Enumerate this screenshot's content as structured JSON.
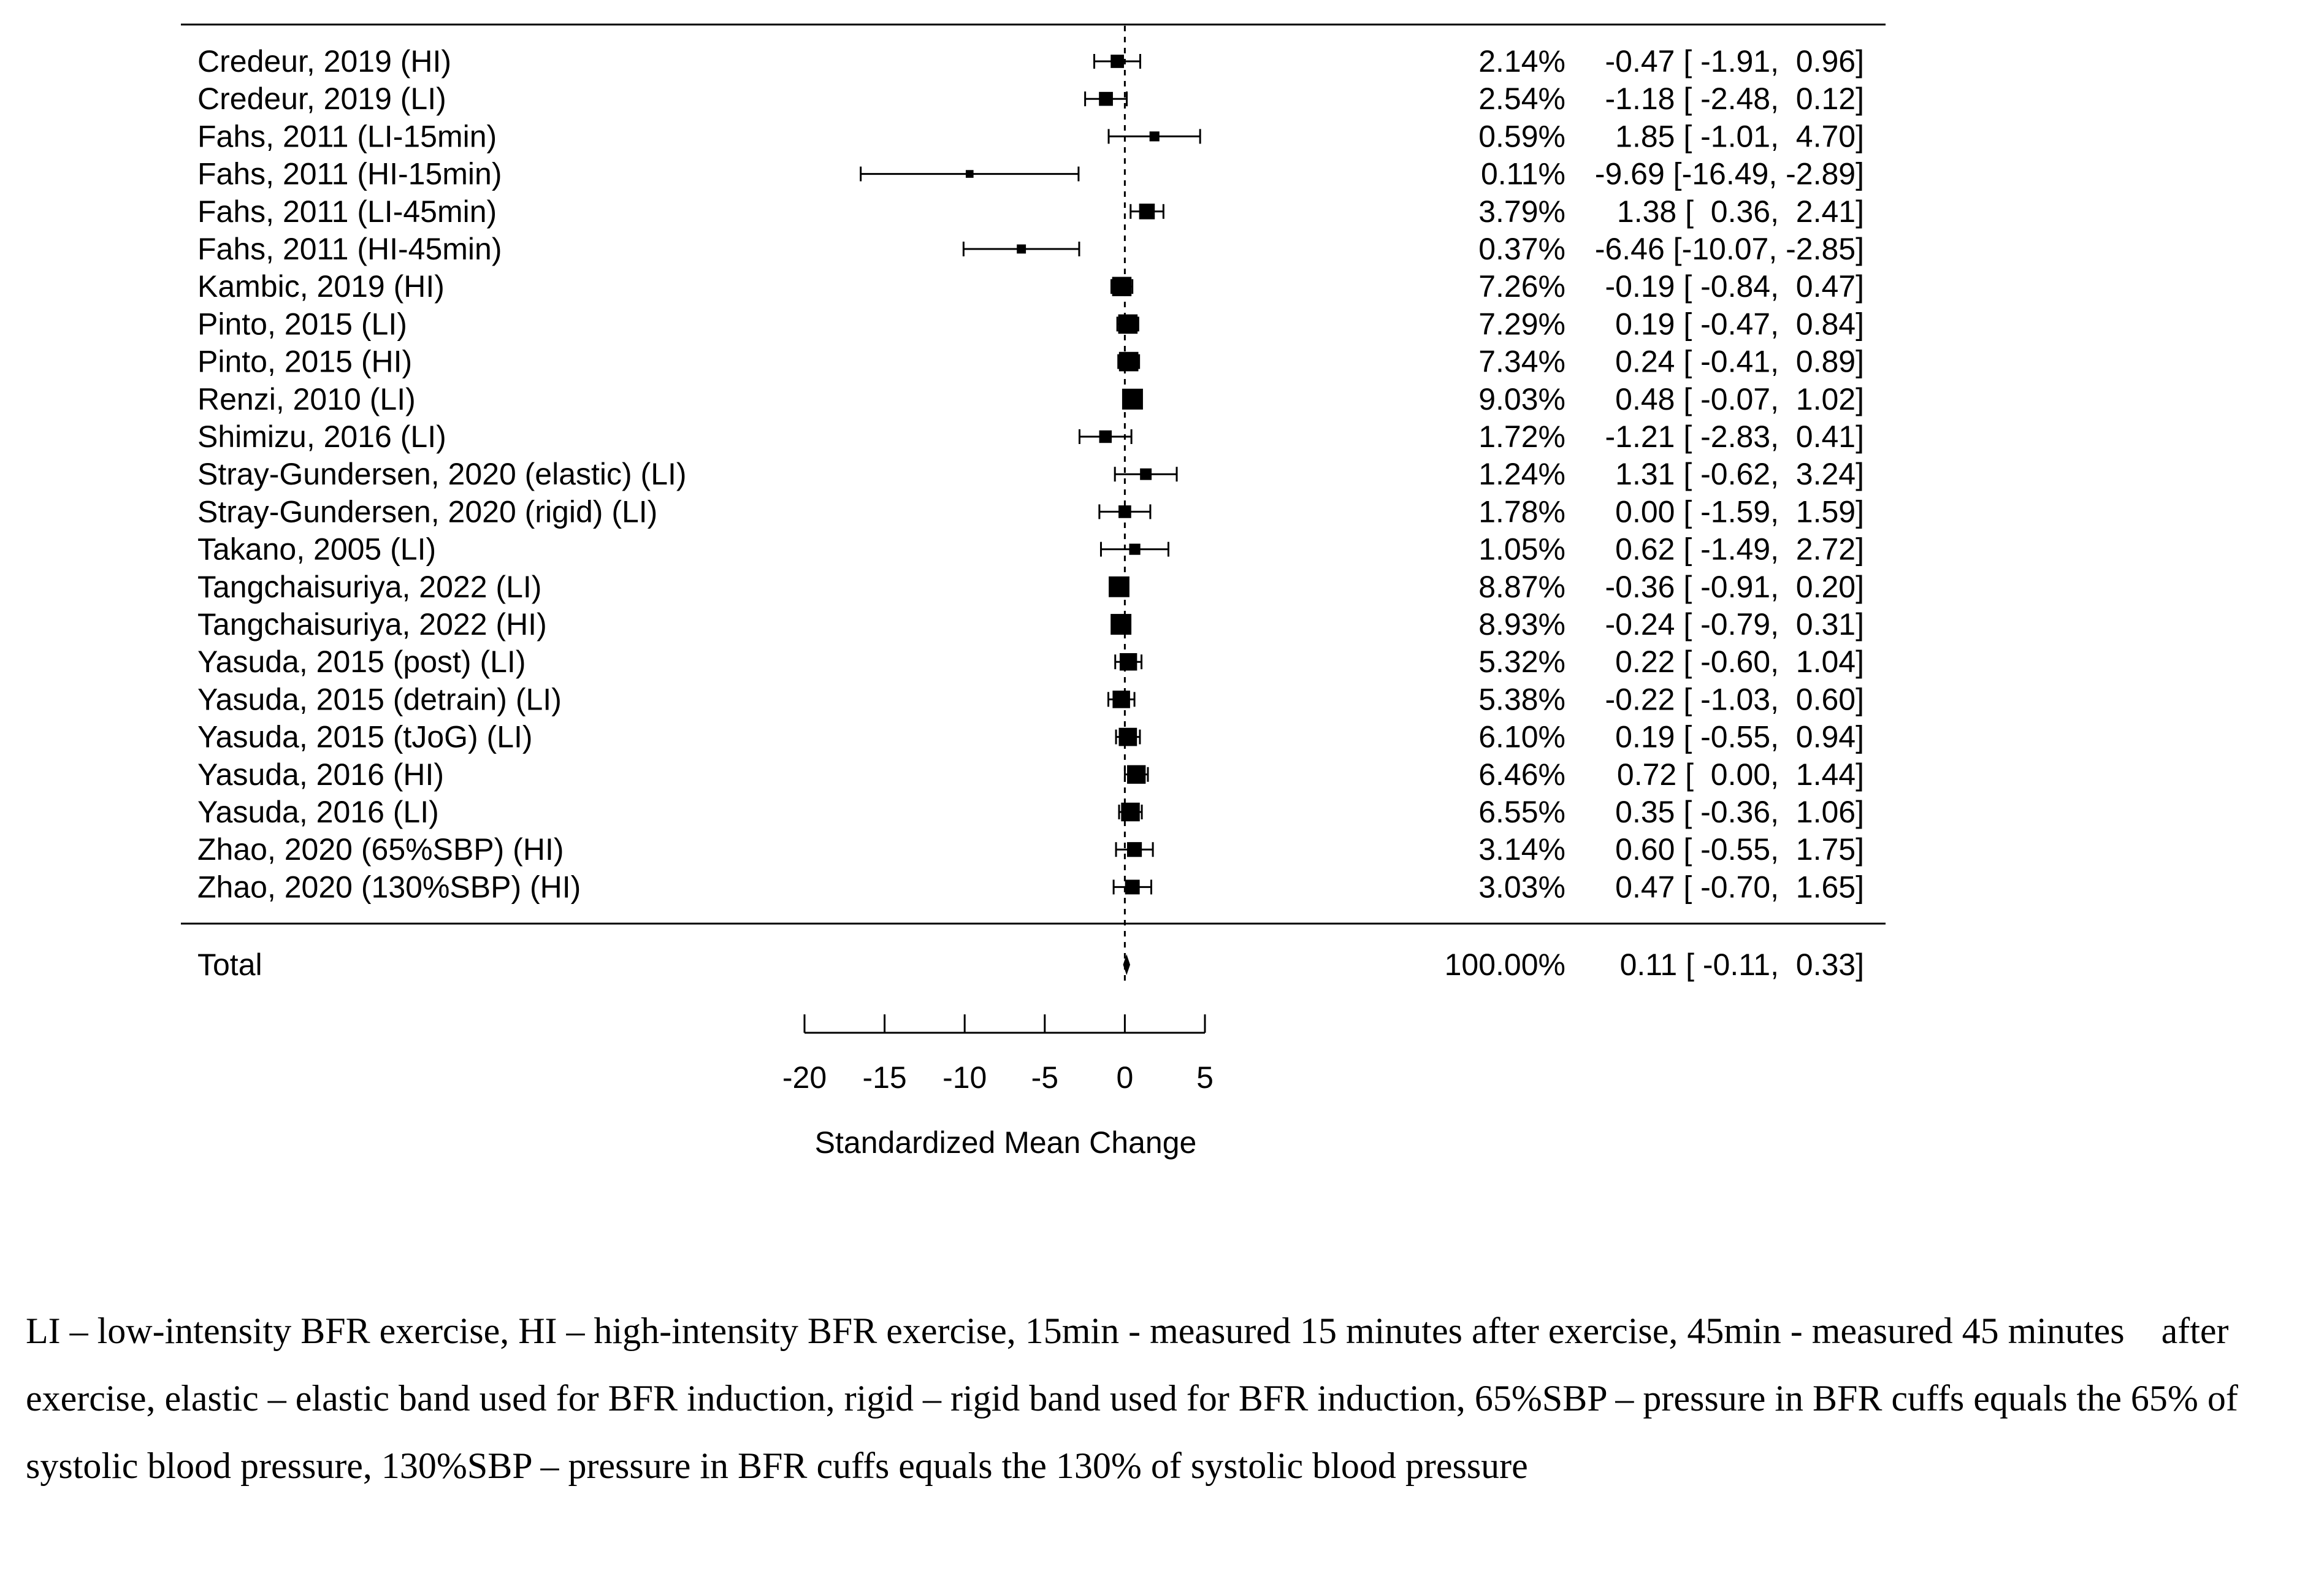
{
  "chart_data": {
    "type": "forest",
    "xlabel": "Standardized Mean Change",
    "xlim": [
      -20,
      5
    ],
    "xticks": [
      -20,
      -15,
      -10,
      -5,
      0,
      5
    ],
    "reference_line": 0,
    "studies": [
      {
        "label": "Credeur, 2019 (HI)",
        "weight": "2.14%",
        "est": -0.47,
        "lo": -1.91,
        "hi": 0.96,
        "ci_text": "-0.47 [ -1.91,  0.96]"
      },
      {
        "label": "Credeur, 2019 (LI)",
        "weight": "2.54%",
        "est": -1.18,
        "lo": -2.48,
        "hi": 0.12,
        "ci_text": "-1.18 [ -2.48,  0.12]"
      },
      {
        "label": "Fahs, 2011 (LI-15min)",
        "weight": "0.59%",
        "est": 1.85,
        "lo": -1.01,
        "hi": 4.7,
        "ci_text": "1.85 [ -1.01,  4.70]"
      },
      {
        "label": "Fahs, 2011 (HI-15min)",
        "weight": "0.11%",
        "est": -9.69,
        "lo": -16.49,
        "hi": -2.89,
        "ci_text": "-9.69 [-16.49, -2.89]"
      },
      {
        "label": "Fahs, 2011 (LI-45min)",
        "weight": "3.79%",
        "est": 1.38,
        "lo": 0.36,
        "hi": 2.41,
        "ci_text": "1.38 [  0.36,  2.41]"
      },
      {
        "label": "Fahs, 2011 (HI-45min)",
        "weight": "0.37%",
        "est": -6.46,
        "lo": -10.07,
        "hi": -2.85,
        "ci_text": "-6.46 [-10.07, -2.85]"
      },
      {
        "label": "Kambic, 2019 (HI)",
        "weight": "7.26%",
        "est": -0.19,
        "lo": -0.84,
        "hi": 0.47,
        "ci_text": "-0.19 [ -0.84,  0.47]"
      },
      {
        "label": "Pinto, 2015 (LI)",
        "weight": "7.29%",
        "est": 0.19,
        "lo": -0.47,
        "hi": 0.84,
        "ci_text": "0.19 [ -0.47,  0.84]"
      },
      {
        "label": "Pinto, 2015 (HI)",
        "weight": "7.34%",
        "est": 0.24,
        "lo": -0.41,
        "hi": 0.89,
        "ci_text": "0.24 [ -0.41,  0.89]"
      },
      {
        "label": "Renzi, 2010 (LI)",
        "weight": "9.03%",
        "est": 0.48,
        "lo": -0.07,
        "hi": 1.02,
        "ci_text": "0.48 [ -0.07,  1.02]"
      },
      {
        "label": "Shimizu, 2016 (LI)",
        "weight": "1.72%",
        "est": -1.21,
        "lo": -2.83,
        "hi": 0.41,
        "ci_text": "-1.21 [ -2.83,  0.41]"
      },
      {
        "label": "Stray-Gundersen, 2020 (elastic) (LI)",
        "weight": "1.24%",
        "est": 1.31,
        "lo": -0.62,
        "hi": 3.24,
        "ci_text": "1.31 [ -0.62,  3.24]"
      },
      {
        "label": "Stray-Gundersen, 2020 (rigid) (LI)",
        "weight": "1.78%",
        "est": 0.0,
        "lo": -1.59,
        "hi": 1.59,
        "ci_text": "0.00 [ -1.59,  1.59]"
      },
      {
        "label": "Takano, 2005 (LI)",
        "weight": "1.05%",
        "est": 0.62,
        "lo": -1.49,
        "hi": 2.72,
        "ci_text": "0.62 [ -1.49,  2.72]"
      },
      {
        "label": "Tangchaisuriya, 2022 (LI)",
        "weight": "8.87%",
        "est": -0.36,
        "lo": -0.91,
        "hi": 0.2,
        "ci_text": "-0.36 [ -0.91,  0.20]"
      },
      {
        "label": "Tangchaisuriya, 2022 (HI)",
        "weight": "8.93%",
        "est": -0.24,
        "lo": -0.79,
        "hi": 0.31,
        "ci_text": "-0.24 [ -0.79,  0.31]"
      },
      {
        "label": "Yasuda, 2015 (post) (LI)",
        "weight": "5.32%",
        "est": 0.22,
        "lo": -0.6,
        "hi": 1.04,
        "ci_text": "0.22 [ -0.60,  1.04]"
      },
      {
        "label": "Yasuda, 2015 (detrain) (LI)",
        "weight": "5.38%",
        "est": -0.22,
        "lo": -1.03,
        "hi": 0.6,
        "ci_text": "-0.22 [ -1.03,  0.60]"
      },
      {
        "label": "Yasuda, 2015 (tJoG) (LI)",
        "weight": "6.10%",
        "est": 0.19,
        "lo": -0.55,
        "hi": 0.94,
        "ci_text": "0.19 [ -0.55,  0.94]"
      },
      {
        "label": "Yasuda, 2016 (HI)",
        "weight": "6.46%",
        "est": 0.72,
        "lo": 0.0,
        "hi": 1.44,
        "ci_text": "0.72 [  0.00,  1.44]"
      },
      {
        "label": "Yasuda, 2016 (LI)",
        "weight": "6.55%",
        "est": 0.35,
        "lo": -0.36,
        "hi": 1.06,
        "ci_text": "0.35 [ -0.36,  1.06]"
      },
      {
        "label": "Zhao, 2020 (65%SBP) (HI)",
        "weight": "3.14%",
        "est": 0.6,
        "lo": -0.55,
        "hi": 1.75,
        "ci_text": "0.60 [ -0.55,  1.75]"
      },
      {
        "label": "Zhao, 2020 (130%SBP) (HI)",
        "weight": "3.03%",
        "est": 0.47,
        "lo": -0.7,
        "hi": 1.65,
        "ci_text": "0.47 [ -0.70,  1.65]"
      }
    ],
    "total": {
      "label": "Total",
      "weight": "100.00%",
      "est": 0.11,
      "lo": -0.11,
      "hi": 0.33,
      "ci_text": "0.11 [ -0.11,  0.33]"
    }
  },
  "caption": {
    "text": "LI – low-intensity BFR exercise, HI – high-intensity BFR exercise, 15min - measured 15 minutes after exercise, 45min - measured 45 minutes    after exercise, elastic – elastic band used for BFR induction, rigid – rigid band used for BFR induction, 65%SBP – pressure in BFR cuffs equals the 65% of systolic blood pressure, 130%SBP – pressure in BFR cuffs equals the 130% of systolic blood pressure"
  }
}
